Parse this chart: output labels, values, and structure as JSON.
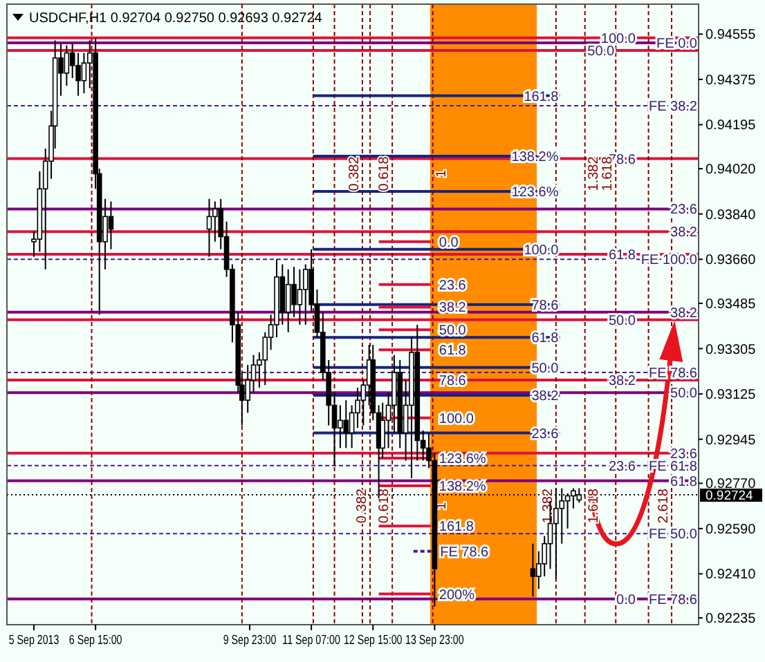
{
  "chart_data": {
    "type": "candlestick",
    "title": "USDCHF,H1  0.92704 0.92750 0.92693 0.92724",
    "x": [
      "2013-09-05T07:00",
      "2013-09-05T10:00",
      "2013-09-05T13:00",
      "2013-09-05T16:00",
      "2013-09-05T18:00",
      "2013-09-05T21:00",
      "2013-09-06T00:00",
      "2013-09-06T03:00",
      "2013-09-06T06:00",
      "2013-09-06T09:00",
      "2013-09-06T12:00",
      "2013-09-06T15:00",
      "2013-09-06T17:00",
      "2013-09-06T20:00",
      "2013-09-06T23:00",
      "2013-09-09T02:00",
      "2013-09-09T05:00",
      "2013-09-09T08:00",
      "2013-09-09T11:00",
      "2013-09-09T14:00",
      "2013-09-09T17:00",
      "2013-09-09T19:00",
      "2013-09-09T22:00",
      "2013-09-10T01:00",
      "2013-09-10T04:00",
      "2013-09-10T07:00",
      "2013-09-10T10:00",
      "2013-09-10T13:00",
      "2013-09-10T16:00",
      "2013-09-10T19:00",
      "2013-09-10T22:00",
      "2013-09-11T01:00",
      "2013-09-11T04:00",
      "2013-09-11T07:00",
      "2013-09-11T10:00",
      "2013-09-11T13:00",
      "2013-09-11T16:00",
      "2013-09-11T19:00",
      "2013-09-11T22:00",
      "2013-09-12T01:00",
      "2013-09-12T04:00",
      "2013-09-12T07:00",
      "2013-09-12T10:00",
      "2013-09-12T13:00",
      "2013-09-12T15:00",
      "2013-09-12T18:00",
      "2013-09-12T20:00",
      "2013-09-12T23:00",
      "2013-09-13T02:00",
      "2013-09-13T05:00",
      "2013-09-13T08:00",
      "2013-09-13T11:00",
      "2013-09-13T14:00",
      "2013-09-13T17:00",
      "2013-09-13T20:00",
      "2013-09-13T23:00",
      "2013-09-16T02:00",
      "2013-09-16T05:00",
      "2013-09-16T08:00",
      "2013-09-16T11:00",
      "2013-09-16T14:00",
      "2013-09-16T17:00",
      "2013-09-16T20:00",
      "2013-09-16T23:00",
      "2013-09-17T02:00"
    ],
    "ohlc": [
      [
        0.9373,
        0.9377,
        0.9367,
        0.9374
      ],
      [
        0.9374,
        0.9401,
        0.9369,
        0.9394
      ],
      [
        0.9394,
        0.941,
        0.9362,
        0.9405
      ],
      [
        0.9405,
        0.9425,
        0.9398,
        0.9419
      ],
      [
        0.9419,
        0.9453,
        0.941,
        0.9446
      ],
      [
        0.9446,
        0.9452,
        0.9431,
        0.944
      ],
      [
        0.944,
        0.9451,
        0.9435,
        0.9448
      ],
      [
        0.9448,
        0.9452,
        0.9438,
        0.9443
      ],
      [
        0.9443,
        0.9448,
        0.9431,
        0.9437
      ],
      [
        0.9437,
        0.9448,
        0.9432,
        0.9444
      ],
      [
        0.9444,
        0.9453,
        0.9434,
        0.9448
      ],
      [
        0.9448,
        0.9454,
        0.9394,
        0.94
      ],
      [
        0.94,
        0.9402,
        0.9344,
        0.9373
      ],
      [
        0.9373,
        0.939,
        0.9362,
        0.9383
      ],
      [
        0.9383,
        0.9389,
        0.937,
        0.9378
      ],
      [
        0.9378,
        0.939,
        0.9367,
        0.9383
      ],
      [
        0.9383,
        0.9389,
        0.9373,
        0.9386
      ],
      [
        0.9386,
        0.939,
        0.937,
        0.9375
      ],
      [
        0.9375,
        0.9381,
        0.9359,
        0.9362
      ],
      [
        0.9362,
        0.9364,
        0.9333,
        0.934
      ],
      [
        0.934,
        0.9345,
        0.9313,
        0.9316
      ],
      [
        0.9316,
        0.9321,
        0.93,
        0.931
      ],
      [
        0.931,
        0.9324,
        0.9305,
        0.9318
      ],
      [
        0.9318,
        0.9328,
        0.9313,
        0.9324
      ],
      [
        0.9324,
        0.9329,
        0.9315,
        0.9326
      ],
      [
        0.9326,
        0.9337,
        0.9316,
        0.9335
      ],
      [
        0.9335,
        0.9344,
        0.933,
        0.934
      ],
      [
        0.934,
        0.9366,
        0.9335,
        0.9359
      ],
      [
        0.9359,
        0.9364,
        0.934,
        0.9345
      ],
      [
        0.9345,
        0.9362,
        0.9337,
        0.9356
      ],
      [
        0.9356,
        0.9363,
        0.9343,
        0.9348
      ],
      [
        0.9348,
        0.9362,
        0.934,
        0.9354
      ],
      [
        0.9354,
        0.9364,
        0.934,
        0.9362
      ],
      [
        0.9362,
        0.937,
        0.9345,
        0.9348
      ],
      [
        0.9348,
        0.9354,
        0.9335,
        0.9337
      ],
      [
        0.9337,
        0.9345,
        0.9318,
        0.9321
      ],
      [
        0.9321,
        0.9326,
        0.93,
        0.9308
      ],
      [
        0.9308,
        0.9313,
        0.9284,
        0.9299
      ],
      [
        0.9299,
        0.9308,
        0.9291,
        0.9302
      ],
      [
        0.9302,
        0.931,
        0.9291,
        0.9297
      ],
      [
        0.9297,
        0.9308,
        0.9291,
        0.9305
      ],
      [
        0.9305,
        0.9315,
        0.9299,
        0.931
      ],
      [
        0.931,
        0.9318,
        0.93,
        0.9316
      ],
      [
        0.9316,
        0.9332,
        0.9308,
        0.9326
      ],
      [
        0.9326,
        0.9332,
        0.9302,
        0.9305
      ],
      [
        0.9305,
        0.9308,
        0.9271,
        0.9291
      ],
      [
        0.9291,
        0.9309,
        0.9287,
        0.9302
      ],
      [
        0.9302,
        0.9313,
        0.9291,
        0.9308
      ],
      [
        0.9308,
        0.9328,
        0.9297,
        0.9321
      ],
      [
        0.9321,
        0.9326,
        0.9291,
        0.9297
      ],
      [
        0.9297,
        0.9318,
        0.9286,
        0.9308
      ],
      [
        0.9308,
        0.9335,
        0.9279,
        0.9329
      ],
      [
        0.9329,
        0.934,
        0.9286,
        0.9294
      ],
      [
        0.9294,
        0.9298,
        0.9286,
        0.9291
      ],
      [
        0.9291,
        0.9297,
        0.9283,
        0.9286
      ],
      [
        0.9286,
        0.9289,
        0.9228,
        0.9243
      ],
      [
        0.9243,
        0.9253,
        0.9232,
        0.924
      ],
      [
        0.924,
        0.925,
        0.9235,
        0.9245
      ],
      [
        0.9245,
        0.9256,
        0.924,
        0.9253
      ],
      [
        0.9253,
        0.927,
        0.9243,
        0.9261
      ],
      [
        0.9261,
        0.9275,
        0.9239,
        0.9267
      ],
      [
        0.9267,
        0.9275,
        0.9253,
        0.927
      ],
      [
        0.927,
        0.9273,
        0.9259,
        0.9272
      ],
      [
        0.9272,
        0.9275,
        0.9267,
        0.9274
      ],
      [
        0.92704,
        0.9275,
        0.92693,
        0.92724
      ]
    ],
    "series": [
      {
        "type": "line",
        "color": "#1a237e",
        "line_style": "solid",
        "x": [
          "2013-09-11T08:00",
          "2013-09-16T16:00"
        ],
        "values": [
          0.9431,
          0.9431
        ]
      },
      {
        "type": "line",
        "color": "#1a237e",
        "line_style": "solid",
        "x": [
          "2013-09-11T08:00",
          "2013-09-16T16:00"
        ],
        "values": [
          0.9407,
          0.9407
        ]
      },
      {
        "type": "line",
        "color": "#1a237e",
        "line_style": "solid",
        "x": [
          "2013-09-11T08:00",
          "2013-09-16T16:00"
        ],
        "values": [
          0.9393,
          0.9393
        ]
      },
      {
        "type": "line",
        "color": "#1a237e",
        "line_style": "solid",
        "x": [
          "2013-09-11T08:00",
          "2013-09-16T16:00"
        ],
        "values": [
          0.937,
          0.937
        ]
      },
      {
        "type": "line",
        "color": "#1a237e",
        "line_style": "solid",
        "x": [
          "2013-09-11T08:00",
          "2013-09-16T16:00"
        ],
        "values": [
          0.9348,
          0.9348
        ]
      },
      {
        "type": "line",
        "color": "#1a237e",
        "line_style": "solid",
        "x": [
          "2013-09-11T08:00",
          "2013-09-16T16:00"
        ],
        "values": [
          0.9335,
          0.9335
        ]
      },
      {
        "type": "line",
        "color": "#1a237e",
        "line_style": "solid",
        "x": [
          "2013-09-11T08:00",
          "2013-09-16T16:00"
        ],
        "values": [
          0.9323,
          0.9323
        ]
      },
      {
        "type": "line",
        "color": "#1a237e",
        "line_style": "solid",
        "x": [
          "2013-09-11T08:00",
          "2013-09-16T16:00"
        ],
        "values": [
          0.9312,
          0.9312
        ]
      },
      {
        "type": "line",
        "color": "#1a237e",
        "line_style": "solid",
        "x": [
          "2013-09-11T08:00",
          "2013-09-16T16:00"
        ],
        "values": [
          0.9297,
          0.9297
        ]
      },
      {
        "type": "line",
        "color": "#dc143c",
        "line_style": "solid",
        "x": [
          "2013-09-12T18:00",
          "2013-09-13T21:00"
        ],
        "values": [
          0.9373,
          0.9373
        ]
      },
      {
        "type": "line",
        "color": "#dc143c",
        "line_style": "solid",
        "x": [
          "2013-09-12T18:00",
          "2013-09-13T21:00"
        ],
        "values": [
          0.9356,
          0.9356
        ]
      },
      {
        "type": "line",
        "color": "#dc143c",
        "line_style": "solid",
        "x": [
          "2013-09-12T18:00",
          "2013-09-13T21:00"
        ],
        "values": [
          0.9347,
          0.9347
        ]
      },
      {
        "type": "line",
        "color": "#dc143c",
        "line_style": "solid",
        "x": [
          "2013-09-12T18:00",
          "2013-09-13T21:00"
        ],
        "values": [
          0.9338,
          0.9338
        ]
      },
      {
        "type": "line",
        "color": "#dc143c",
        "line_style": "solid",
        "x": [
          "2013-09-12T18:00",
          "2013-09-13T21:00"
        ],
        "values": [
          0.933,
          0.933
        ]
      },
      {
        "type": "line",
        "color": "#dc143c",
        "line_style": "solid",
        "x": [
          "2013-09-12T18:00",
          "2013-09-13T21:00"
        ],
        "values": [
          0.9303,
          0.9303
        ]
      },
      {
        "type": "line",
        "color": "#dc143c",
        "line_style": "solid",
        "x": [
          "2013-09-12T18:00",
          "2013-09-13T21:00"
        ],
        "values": [
          0.9287,
          0.9287
        ]
      },
      {
        "type": "line",
        "color": "#dc143c",
        "line_style": "solid",
        "x": [
          "2013-09-12T18:00",
          "2013-09-13T21:00"
        ],
        "values": [
          0.9276,
          0.9276
        ]
      },
      {
        "type": "line",
        "color": "#dc143c",
        "line_style": "solid",
        "x": [
          "2013-09-12T18:00",
          "2013-09-13T21:00"
        ],
        "values": [
          0.926,
          0.926
        ]
      },
      {
        "type": "line",
        "color": "#dc143c",
        "line_style": "solid",
        "x": [
          "2013-09-12T18:00",
          "2013-09-13T21:00"
        ],
        "values": [
          0.9233,
          0.9233
        ]
      },
      {
        "type": "line",
        "color": "#4b1a8c",
        "line_style": "dashed",
        "x": [
          "2013-09-13T12:00",
          "2013-09-13T21:30"
        ],
        "values": [
          0.925,
          0.925
        ]
      }
    ],
    "xlim": [
      "2013-09-04T17:00",
      "2013-09-19T16:00"
    ],
    "xticks": [
      {
        "value": "2013-09-05T07:00",
        "label": "5 Sep 2013"
      },
      {
        "value": "2013-09-06T15:00",
        "label": "6 Sep 15:00"
      },
      {
        "value": "2013-09-09T23:00",
        "label": "9 Sep 23:00"
      },
      {
        "value": "2013-09-11T07:00",
        "label": "11 Sep 07:00"
      },
      {
        "value": "2013-09-12T15:00",
        "label": "12 Sep 15:00"
      },
      {
        "value": "2013-09-13T23:00",
        "label": "13 Sep 23:00"
      }
    ],
    "ylim": [
      0.92208,
      0.94674
    ],
    "yticks": [
      0.94555,
      0.94375,
      0.94195,
      {
        "value": 0.9402,
        "label": "0.94020"
      },
      {
        "value": 0.9384,
        "label": "0.93840"
      },
      {
        "value": 0.9366,
        "label": "0.93660"
      },
      0.93485,
      0.93305,
      0.93125,
      0.92945,
      {
        "value": 0.9277,
        "label": "0.92770"
      },
      {
        "value": 0.9259,
        "label": "0.92590"
      },
      {
        "value": 0.9241,
        "label": "0.92410"
      },
      0.92235
    ],
    "grid": false,
    "bands": [
      {
        "axis": "x",
        "from": "2013-09-13T20:40",
        "to": "2013-09-16T04:00",
        "color": "#ff8c00"
      }
    ],
    "ref_lines": [
      {
        "axis": "y",
        "value": 0.9454,
        "color": "#dc143c",
        "line_style": "solid"
      },
      {
        "axis": "y",
        "value": 0.9452,
        "color": "#800080",
        "line_style": "solid"
      },
      {
        "axis": "y",
        "value": 0.9449,
        "color": "#dc143c",
        "line_style": "solid"
      },
      {
        "axis": "y",
        "value": 0.9427,
        "color": "#4b1a8c",
        "line_style": "dashed"
      },
      {
        "axis": "y",
        "value": 0.9406,
        "color": "#dc143c",
        "line_style": "solid"
      },
      {
        "axis": "y",
        "value": 0.9386,
        "color": "#800080",
        "line_style": "solid"
      },
      {
        "axis": "y",
        "value": 0.9377,
        "color": "#dc143c",
        "line_style": "solid"
      },
      {
        "axis": "y",
        "value": 0.9368,
        "color": "#dc143c",
        "line_style": "solid"
      },
      {
        "axis": "y",
        "value": 0.9366,
        "color": "#4b1a8c",
        "line_style": "dashed"
      },
      {
        "axis": "y",
        "value": 0.9345,
        "color": "#800080",
        "line_style": "solid"
      },
      {
        "axis": "y",
        "value": 0.9342,
        "color": "#dc143c",
        "line_style": "solid"
      },
      {
        "axis": "y",
        "value": 0.9321,
        "color": "#4b1a8c",
        "line_style": "dashed"
      },
      {
        "axis": "y",
        "value": 0.9318,
        "color": "#dc143c",
        "line_style": "solid"
      },
      {
        "axis": "y",
        "value": 0.9313,
        "color": "#800080",
        "line_style": "solid"
      },
      {
        "axis": "y",
        "value": 0.9289,
        "color": "#dc143c",
        "line_style": "solid"
      },
      {
        "axis": "y",
        "value": 0.9284,
        "color": "#4b1a8c",
        "line_style": "dashed"
      },
      {
        "axis": "y",
        "value": 0.9278,
        "color": "#800080",
        "line_style": "solid"
      },
      {
        "axis": "y",
        "value": 0.92724,
        "label": "0.92724",
        "color": "#000000",
        "line_style": "dotted"
      },
      {
        "axis": "y",
        "value": 0.9257,
        "color": "#4b1a8c",
        "line_style": "dashed"
      },
      {
        "axis": "y",
        "value": 0.9231,
        "color": "#800080",
        "line_style": "solid"
      },
      {
        "axis": "x",
        "value": "2013-09-06T13:00",
        "color": "#8b0000",
        "line_style": "dashed"
      },
      {
        "axis": "x",
        "value": "2013-09-09T19:00",
        "color": "#8b0000",
        "line_style": "dashed"
      },
      {
        "axis": "x",
        "value": "2013-09-11T08:00",
        "color": "#8b0000",
        "line_style": "dashed"
      },
      {
        "axis": "x",
        "value": "2013-09-11T19:00",
        "color": "#8b0000",
        "line_style": "dashed"
      },
      {
        "axis": "x",
        "value": "2013-09-12T09:30",
        "color": "#8b0000",
        "line_style": "dashed"
      },
      {
        "axis": "x",
        "value": "2013-09-12T13:30",
        "color": "#8b0000",
        "line_style": "dashed"
      },
      {
        "axis": "x",
        "value": "2013-09-13T01:00",
        "color": "#8b0000",
        "line_style": "dashed"
      },
      {
        "axis": "x",
        "value": "2013-09-13T22:00",
        "color": "#8b0000",
        "line_style": "dashed"
      },
      {
        "axis": "x",
        "value": "2013-09-16T14:00",
        "color": "#8b0000",
        "line_style": "dashed"
      },
      {
        "axis": "x",
        "value": "2013-09-17T05:00",
        "color": "#8b0000",
        "line_style": "dashed"
      },
      {
        "axis": "x",
        "value": "2013-09-17T21:00",
        "color": "#8b0000",
        "line_style": "dashed"
      },
      {
        "axis": "x",
        "value": "2013-09-18T14:00",
        "color": "#8b0000",
        "line_style": "dashed"
      },
      {
        "axis": "x",
        "value": "2013-09-19T02:00",
        "color": "#8b0000",
        "line_style": "dashed"
      }
    ],
    "annotations": [
      {
        "text": "100.0",
        "x": "2013-09-18T08:00",
        "y": 0.9454
      },
      {
        "text": "FE 0.0",
        "x": "2013-09-19T16:00",
        "y": 0.9452
      },
      {
        "text": "50.0",
        "x": "2013-09-17T02:00",
        "y": 0.9449
      },
      {
        "text": "FE 38.2",
        "x": "2013-09-19T16:00",
        "y": 0.9427
      },
      {
        "text": "78.6",
        "x": "2013-09-18T08:00",
        "y": 0.9406
      },
      {
        "text": "23.6",
        "x": "2013-09-19T16:00",
        "y": 0.9386
      },
      {
        "text": "38.2",
        "x": "2013-09-19T16:00",
        "y": 0.9377
      },
      {
        "text": "61.8",
        "x": "2013-09-18T08:00",
        "y": 0.9368
      },
      {
        "text": "FE 100.0",
        "x": "2013-09-19T16:00",
        "y": 0.9366
      },
      {
        "text": "38.2",
        "x": "2013-09-19T16:00",
        "y": 0.9345
      },
      {
        "text": "50.0",
        "x": "2013-09-18T08:00",
        "y": 0.9342
      },
      {
        "text": "FE 78.6",
        "x": "2013-09-19T16:00",
        "y": 0.9321
      },
      {
        "text": "38.2",
        "x": "2013-09-18T08:00",
        "y": 0.9318
      },
      {
        "text": "50.0",
        "x": "2013-09-19T16:00",
        "y": 0.9313
      },
      {
        "text": "23.6",
        "x": "2013-09-19T16:00",
        "y": 0.9289
      },
      {
        "text": "FE 61.8",
        "x": "2013-09-19T16:00",
        "y": 0.9284
      },
      {
        "text": "23.6",
        "x": "2013-09-18T08:00",
        "y": 0.9284
      },
      {
        "text": "61.8",
        "x": "2013-09-19T16:00",
        "y": 0.9278
      },
      {
        "text": "FE 50.0",
        "x": "2013-09-19T16:00",
        "y": 0.9257
      },
      {
        "text": "FE 78.6",
        "x": "2013-09-19T16:00",
        "y": 0.9231
      },
      {
        "text": "0.0",
        "x": "2013-09-18T08:00",
        "y": 0.9231
      },
      {
        "text": "161.8",
        "x": "2013-09-16T16:00",
        "y": 0.9431
      },
      {
        "text": "138.2%",
        "x": "2013-09-16T16:00",
        "y": 0.9407
      },
      {
        "text": "123.6%",
        "x": "2013-09-16T16:00",
        "y": 0.9393
      },
      {
        "text": "100.0",
        "x": "2013-09-16T16:00",
        "y": 0.937
      },
      {
        "text": "78.6",
        "x": "2013-09-16T16:00",
        "y": 0.9348
      },
      {
        "text": "61.8",
        "x": "2013-09-16T16:00",
        "y": 0.9335
      },
      {
        "text": "50.0",
        "x": "2013-09-16T16:00",
        "y": 0.9323
      },
      {
        "text": "38.2",
        "x": "2013-09-16T16:00",
        "y": 0.9312
      },
      {
        "text": "23.6",
        "x": "2013-09-16T16:00",
        "y": 0.9297
      },
      {
        "text": "0.0",
        "x": "2013-09-13T21:00",
        "y": 0.9373
      },
      {
        "text": "23.6",
        "x": "2013-09-13T21:00",
        "y": 0.9356
      },
      {
        "text": "38.2",
        "x": "2013-09-13T21:00",
        "y": 0.9347
      },
      {
        "text": "50.0",
        "x": "2013-09-13T21:00",
        "y": 0.9338
      },
      {
        "text": "61.8",
        "x": "2013-09-13T21:00",
        "y": 0.933
      },
      {
        "text": "78.6",
        "x": "2013-09-13T21:00",
        "y": 0.9318
      },
      {
        "text": "100.0",
        "x": "2013-09-13T21:00",
        "y": 0.9303
      },
      {
        "text": "123.6%",
        "x": "2013-09-13T21:00",
        "y": 0.9287
      },
      {
        "text": "138.2%",
        "x": "2013-09-13T21:00",
        "y": 0.9276
      },
      {
        "text": "161.8",
        "x": "2013-09-13T21:00",
        "y": 0.926
      },
      {
        "text": "200%",
        "x": "2013-09-13T21:00",
        "y": 0.9233
      },
      {
        "text": "FE 78.6",
        "x": "2013-09-13T21:30",
        "y": 0.925
      },
      {
        "text": "0.382",
        "x": "2013-09-12T09:30",
        "y": 0.94
      },
      {
        "text": "0.618",
        "x": "2013-09-13T01:00",
        "y": 0.94
      },
      {
        "text": "1",
        "x": "2013-09-13T22:00",
        "y": 0.94
      },
      {
        "text": "1.382",
        "x": "2013-09-17T05:00",
        "y": 0.94
      },
      {
        "text": "1.618",
        "x": "2013-09-17T21:00",
        "y": 0.94
      },
      {
        "text": "0.382",
        "x": "2013-09-12T13:30",
        "y": 0.9268
      },
      {
        "text": "0.618",
        "x": "2013-09-13T01:00",
        "y": 0.9268
      },
      {
        "text": "1",
        "x": "2013-09-13T22:00",
        "y": 0.9268
      },
      {
        "text": "1.382",
        "x": "2013-09-16T14:00",
        "y": 0.9268
      },
      {
        "text": "1.618",
        "x": "2013-09-17T05:00",
        "y": 0.9268
      },
      {
        "text": "2.618",
        "x": "2013-09-19T02:00",
        "y": 0.9268
      }
    ]
  }
}
